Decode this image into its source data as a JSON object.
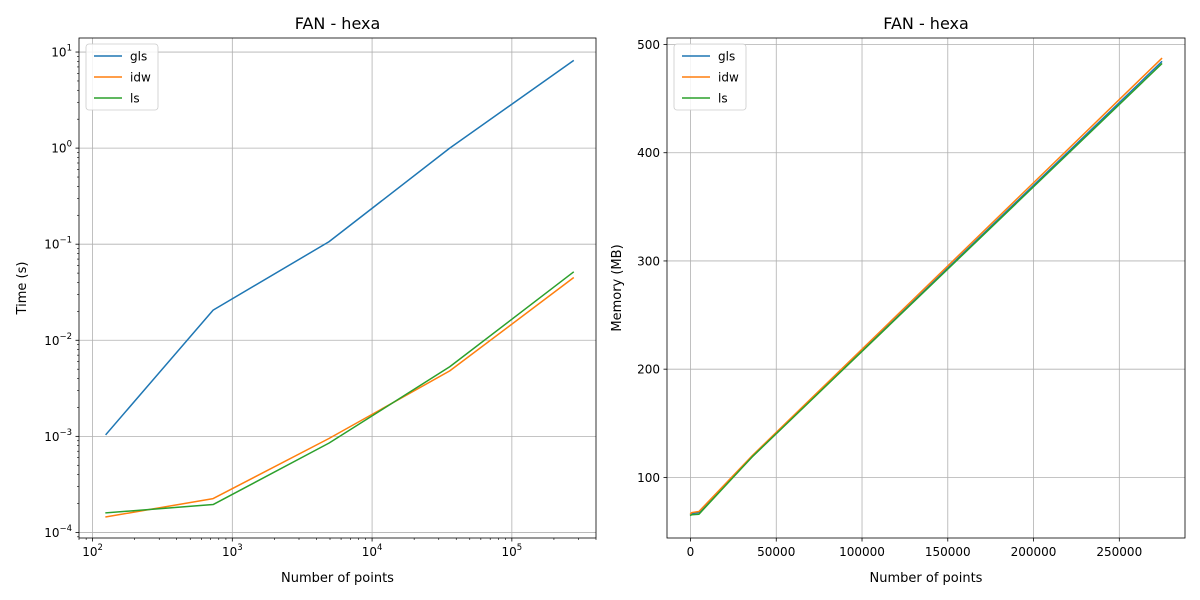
{
  "chart_data": [
    {
      "type": "line",
      "title": "FAN - hexa",
      "xlabel": "Number of points",
      "ylabel": "Time (s)",
      "xscale": "log",
      "yscale": "log",
      "xlim": [
        80,
        400000
      ],
      "ylim": [
        8.75e-05,
        14
      ],
      "grid": true,
      "legend": "top-left",
      "xticks": [
        {
          "value": 100,
          "base": "10",
          "exp": "2"
        },
        {
          "value": 1000,
          "base": "10",
          "exp": "3"
        },
        {
          "value": 10000,
          "base": "10",
          "exp": "4"
        },
        {
          "value": 100000,
          "base": "10",
          "exp": "5"
        }
      ],
      "yticks": [
        {
          "value": 0.0001,
          "base": "10",
          "exp": "−4"
        },
        {
          "value": 0.001,
          "base": "10",
          "exp": "−3"
        },
        {
          "value": 0.01,
          "base": "10",
          "exp": "−2"
        },
        {
          "value": 0.1,
          "base": "10",
          "exp": "−1"
        },
        {
          "value": 1,
          "base": "10",
          "exp": "0"
        },
        {
          "value": 10,
          "base": "10",
          "exp": "1"
        }
      ],
      "x": [
        125,
        729,
        4913,
        35937,
        274625
      ],
      "series": [
        {
          "name": "gls",
          "color": "#1f77b4",
          "values": [
            0.00105,
            0.0206,
            0.106,
            1.0,
            8.1
          ]
        },
        {
          "name": "idw",
          "color": "#ff7f0e",
          "values": [
            0.000145,
            0.000225,
            0.00095,
            0.0048,
            0.0445
          ]
        },
        {
          "name": "ls",
          "color": "#2ca02c",
          "values": [
            0.00016,
            0.000195,
            0.00085,
            0.0053,
            0.051
          ]
        }
      ]
    },
    {
      "type": "line",
      "title": "FAN - hexa",
      "xlabel": "Number of points",
      "ylabel": "Memory (MB)",
      "xscale": "linear",
      "yscale": "linear",
      "xlim": [
        -13700,
        288300
      ],
      "ylim": [
        44,
        506
      ],
      "grid": true,
      "legend": "top-left",
      "xticks": [
        {
          "value": 0,
          "label": "0"
        },
        {
          "value": 50000,
          "label": "50000"
        },
        {
          "value": 100000,
          "label": "100000"
        },
        {
          "value": 150000,
          "label": "150000"
        },
        {
          "value": 200000,
          "label": "200000"
        },
        {
          "value": 250000,
          "label": "250000"
        }
      ],
      "yticks": [
        {
          "value": 100,
          "label": "100"
        },
        {
          "value": 200,
          "label": "200"
        },
        {
          "value": 300,
          "label": "300"
        },
        {
          "value": 400,
          "label": "400"
        },
        {
          "value": 500,
          "label": "500"
        }
      ],
      "x": [
        125,
        729,
        4913,
        35937,
        274625
      ],
      "series": [
        {
          "name": "gls",
          "color": "#1f77b4",
          "values": [
            65.5,
            66.5,
            67.5,
            119,
            484
          ]
        },
        {
          "name": "idw",
          "color": "#ff7f0e",
          "values": [
            66.5,
            67.5,
            68.5,
            120,
            487
          ]
        },
        {
          "name": "ls",
          "color": "#2ca02c",
          "values": [
            65,
            65.5,
            66,
            119,
            482
          ]
        }
      ]
    }
  ]
}
